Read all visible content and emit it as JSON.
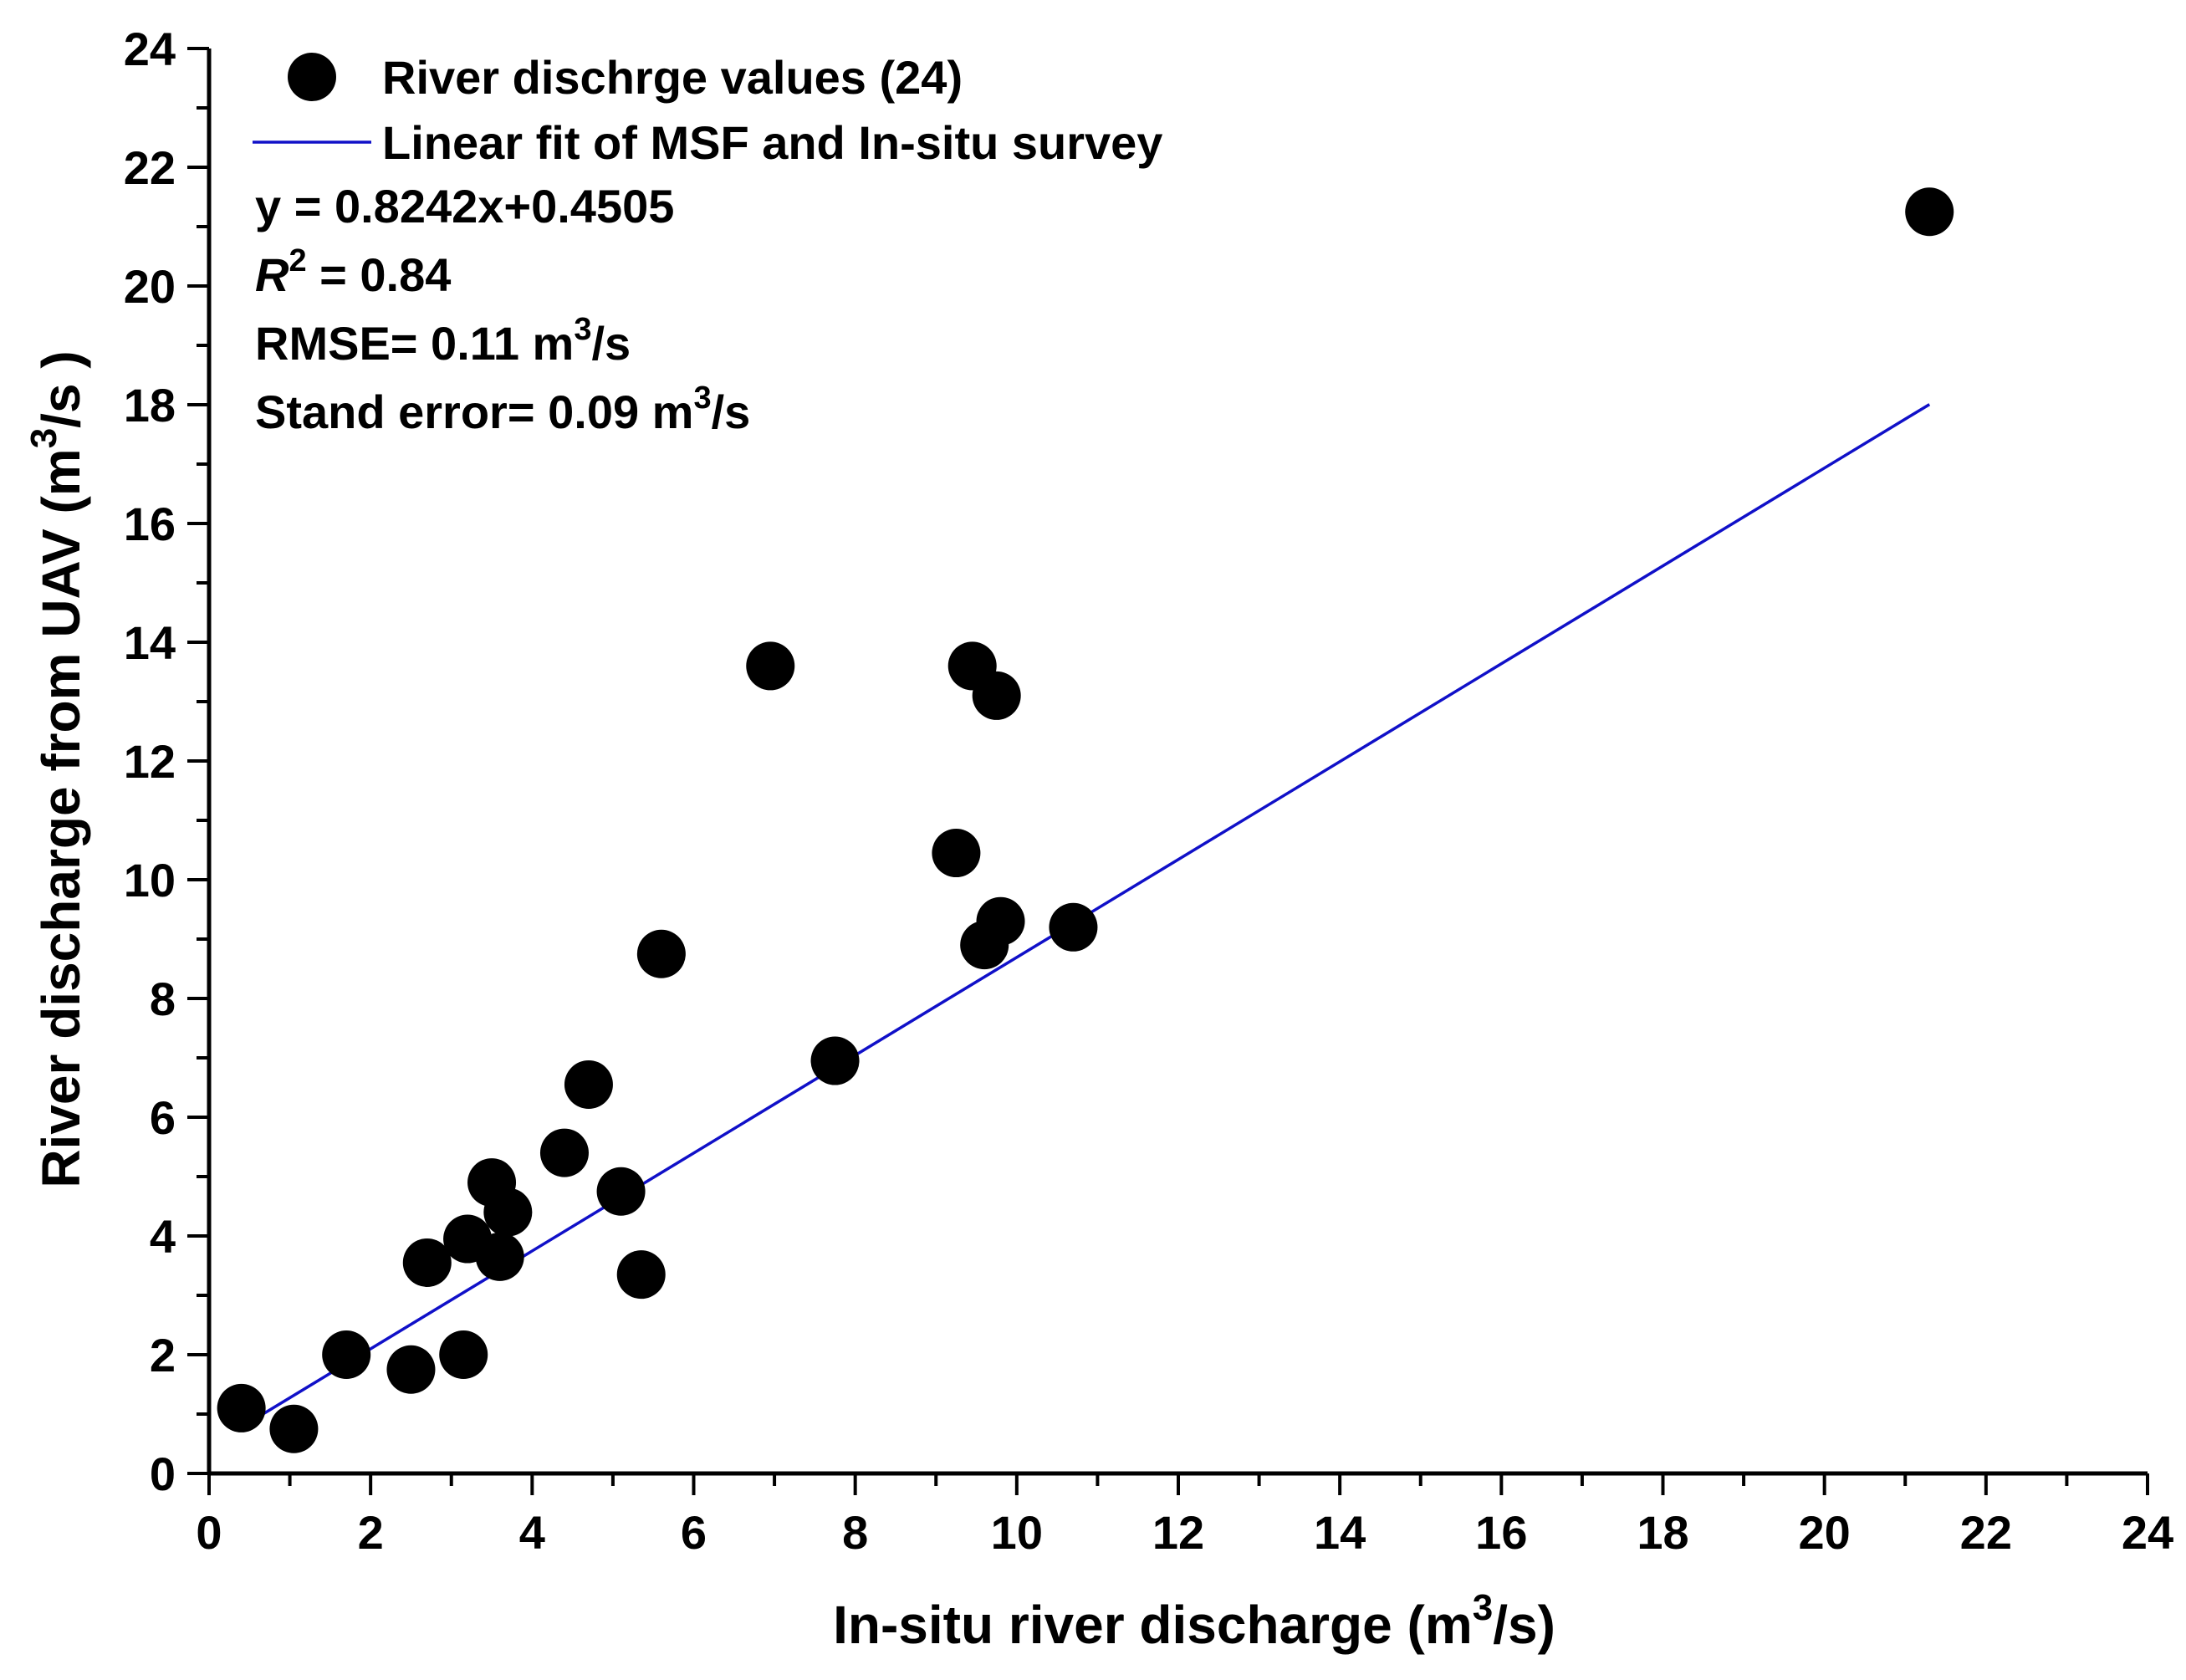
{
  "chart_data": {
    "type": "scatter",
    "xlabel": "In-situ river discharge (m",
    "xlabel_sup": "3",
    "xlabel_end": "/s)",
    "ylabel": "River discharge from UAV (m",
    "ylabel_sup": "3",
    "ylabel_end": "/s )",
    "xlim": [
      0,
      24
    ],
    "ylim": [
      0,
      24
    ],
    "x_ticks": [
      0,
      2,
      4,
      6,
      8,
      10,
      12,
      14,
      16,
      18,
      20,
      22,
      24
    ],
    "y_ticks": [
      0,
      2,
      4,
      6,
      8,
      10,
      12,
      14,
      16,
      18,
      20,
      22,
      24
    ],
    "x_tick_labels": [
      "0",
      "2",
      "4",
      "6",
      "8",
      "10",
      "12",
      "14",
      "16",
      "18",
      "20",
      "22",
      "24"
    ],
    "y_tick_labels": [
      "0",
      "2",
      "4",
      "6",
      "8",
      "10",
      "12",
      "14",
      "16",
      "18",
      "20",
      "22",
      "24"
    ],
    "grid": false,
    "legend": {
      "placement": "top-left",
      "points_label": "River dischrge values (24)",
      "fit_label": "Linear fit of MSF and In-situ survey"
    },
    "annotations": {
      "equation": "y = 0.8242x+0.4505",
      "r2_symbol": "R",
      "r2_sup": "2",
      "r2_value": " = 0.84",
      "rmse_label": "RMSE= 0.11 m",
      "rmse_sup": "3",
      "rmse_unit": "/s",
      "se_label": "Stand error= 0.09 m",
      "se_sup": "3",
      "se_unit": "/s"
    },
    "fit": {
      "slope": 0.8242,
      "intercept": 0.4505,
      "x_range": [
        0.4,
        21.3
      ]
    },
    "series": [
      {
        "name": "River dischrge values (24)",
        "x": [
          0.4,
          1.05,
          1.7,
          2.5,
          2.7,
          3.15,
          3.2,
          3.5,
          3.6,
          3.7,
          4.4,
          4.7,
          5.1,
          5.35,
          5.6,
          6.95,
          7.75,
          9.25,
          9.45,
          9.6,
          9.75,
          9.8,
          10.7,
          21.3
        ],
        "y": [
          1.1,
          0.75,
          2.0,
          1.75,
          3.55,
          2.0,
          3.95,
          4.9,
          3.65,
          4.4,
          5.4,
          6.55,
          4.75,
          3.35,
          8.75,
          13.6,
          6.95,
          10.45,
          13.6,
          8.9,
          13.1,
          9.3,
          9.2,
          21.25
        ]
      }
    ]
  }
}
